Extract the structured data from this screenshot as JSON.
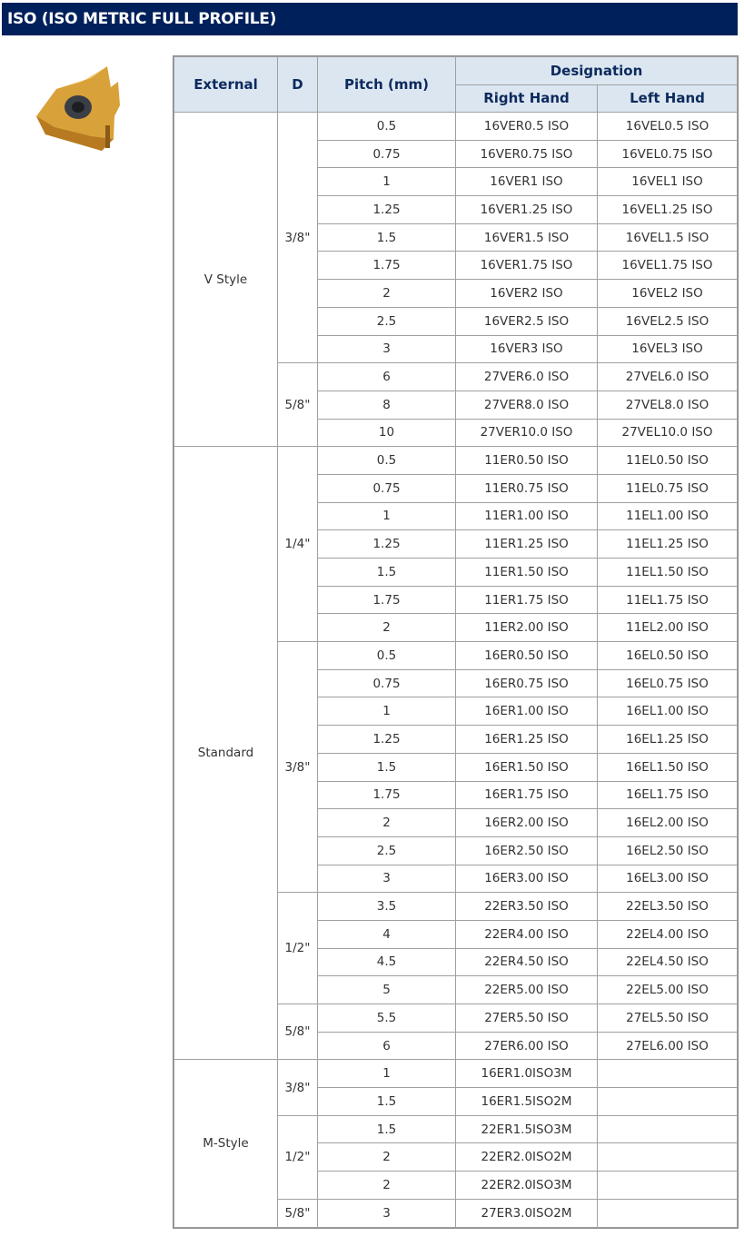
{
  "title": "ISO (ISO METRIC FULL PROFILE)",
  "image": {
    "icon": "threading-insert-image",
    "colors": {
      "gold": "#d9a13a",
      "hole": "#3a3f45"
    }
  },
  "header": {
    "external": "External",
    "d": "D",
    "pitch": "Pitch (mm)",
    "designation": "Designation",
    "right": "Right Hand",
    "left": "Left Hand"
  },
  "groups": [
    {
      "external": "V Style",
      "sizes": [
        {
          "d": "3/8\"",
          "rows": [
            [
              "0.5",
              "16VER0.5 ISO",
              "16VEL0.5 ISO"
            ],
            [
              "0.75",
              "16VER0.75 ISO",
              "16VEL0.75 ISO"
            ],
            [
              "1",
              "16VER1 ISO",
              "16VEL1 ISO"
            ],
            [
              "1.25",
              "16VER1.25 ISO",
              "16VEL1.25 ISO"
            ],
            [
              "1.5",
              "16VER1.5 ISO",
              "16VEL1.5 ISO"
            ],
            [
              "1.75",
              "16VER1.75 ISO",
              "16VEL1.75 ISO"
            ],
            [
              "2",
              "16VER2 ISO",
              "16VEL2 ISO"
            ],
            [
              "2.5",
              "16VER2.5 ISO",
              "16VEL2.5 ISO"
            ],
            [
              "3",
              "16VER3 ISO",
              "16VEL3 ISO"
            ]
          ]
        },
        {
          "d": "5/8\"",
          "rows": [
            [
              "6",
              "27VER6.0 ISO",
              "27VEL6.0 ISO"
            ],
            [
              "8",
              "27VER8.0 ISO",
              "27VEL8.0 ISO"
            ],
            [
              "10",
              "27VER10.0 ISO",
              "27VEL10.0 ISO"
            ]
          ]
        }
      ]
    },
    {
      "external": "Standard",
      "sizes": [
        {
          "d": "1/4\"",
          "rows": [
            [
              "0.5",
              "11ER0.50 ISO",
              "11EL0.50 ISO"
            ],
            [
              "0.75",
              "11ER0.75 ISO",
              "11EL0.75 ISO"
            ],
            [
              "1",
              "11ER1.00 ISO",
              "11EL1.00 ISO"
            ],
            [
              "1.25",
              "11ER1.25 ISO",
              "11EL1.25 ISO"
            ],
            [
              "1.5",
              "11ER1.50 ISO",
              "11EL1.50 ISO"
            ],
            [
              "1.75",
              "11ER1.75 ISO",
              "11EL1.75 ISO"
            ],
            [
              "2",
              "11ER2.00 ISO",
              "11EL2.00 ISO"
            ]
          ]
        },
        {
          "d": "3/8\"",
          "rows": [
            [
              "0.5",
              "16ER0.50 ISO",
              "16EL0.50 ISO"
            ],
            [
              "0.75",
              "16ER0.75 ISO",
              "16EL0.75 ISO"
            ],
            [
              "1",
              "16ER1.00 ISO",
              "16EL1.00 ISO"
            ],
            [
              "1.25",
              "16ER1.25 ISO",
              "16EL1.25 ISO"
            ],
            [
              "1.5",
              "16ER1.50 ISO",
              "16EL1.50 ISO"
            ],
            [
              "1.75",
              "16ER1.75 ISO",
              "16EL1.75 ISO"
            ],
            [
              "2",
              "16ER2.00 ISO",
              "16EL2.00 ISO"
            ],
            [
              "2.5",
              "16ER2.50 ISO",
              "16EL2.50 ISO"
            ],
            [
              "3",
              "16ER3.00 ISO",
              "16EL3.00 ISO"
            ]
          ]
        },
        {
          "d": "1/2\"",
          "rows": [
            [
              "3.5",
              "22ER3.50 ISO",
              "22EL3.50 ISO"
            ],
            [
              "4",
              "22ER4.00 ISO",
              "22EL4.00 ISO"
            ],
            [
              "4.5",
              "22ER4.50 ISO",
              "22EL4.50 ISO"
            ],
            [
              "5",
              "22ER5.00 ISO",
              "22EL5.00 ISO"
            ]
          ]
        },
        {
          "d": "5/8\"",
          "rows": [
            [
              "5.5",
              "27ER5.50 ISO",
              "27EL5.50 ISO"
            ],
            [
              "6",
              "27ER6.00 ISO",
              "27EL6.00 ISO"
            ]
          ]
        }
      ]
    },
    {
      "external": "M-Style",
      "sizes": [
        {
          "d": "3/8\"",
          "rows": [
            [
              "1",
              "16ER1.0ISO3M",
              ""
            ],
            [
              "1.5",
              "16ER1.5ISO2M",
              ""
            ]
          ]
        },
        {
          "d": "1/2\"",
          "rows": [
            [
              "1.5",
              "22ER1.5ISO3M",
              ""
            ],
            [
              "2",
              "22ER2.0ISO2M",
              ""
            ],
            [
              "2",
              "22ER2.0ISO3M",
              ""
            ]
          ]
        },
        {
          "d": "5/8\"",
          "rows": [
            [
              "3",
              "27ER3.0ISO2M",
              ""
            ]
          ]
        }
      ]
    }
  ]
}
